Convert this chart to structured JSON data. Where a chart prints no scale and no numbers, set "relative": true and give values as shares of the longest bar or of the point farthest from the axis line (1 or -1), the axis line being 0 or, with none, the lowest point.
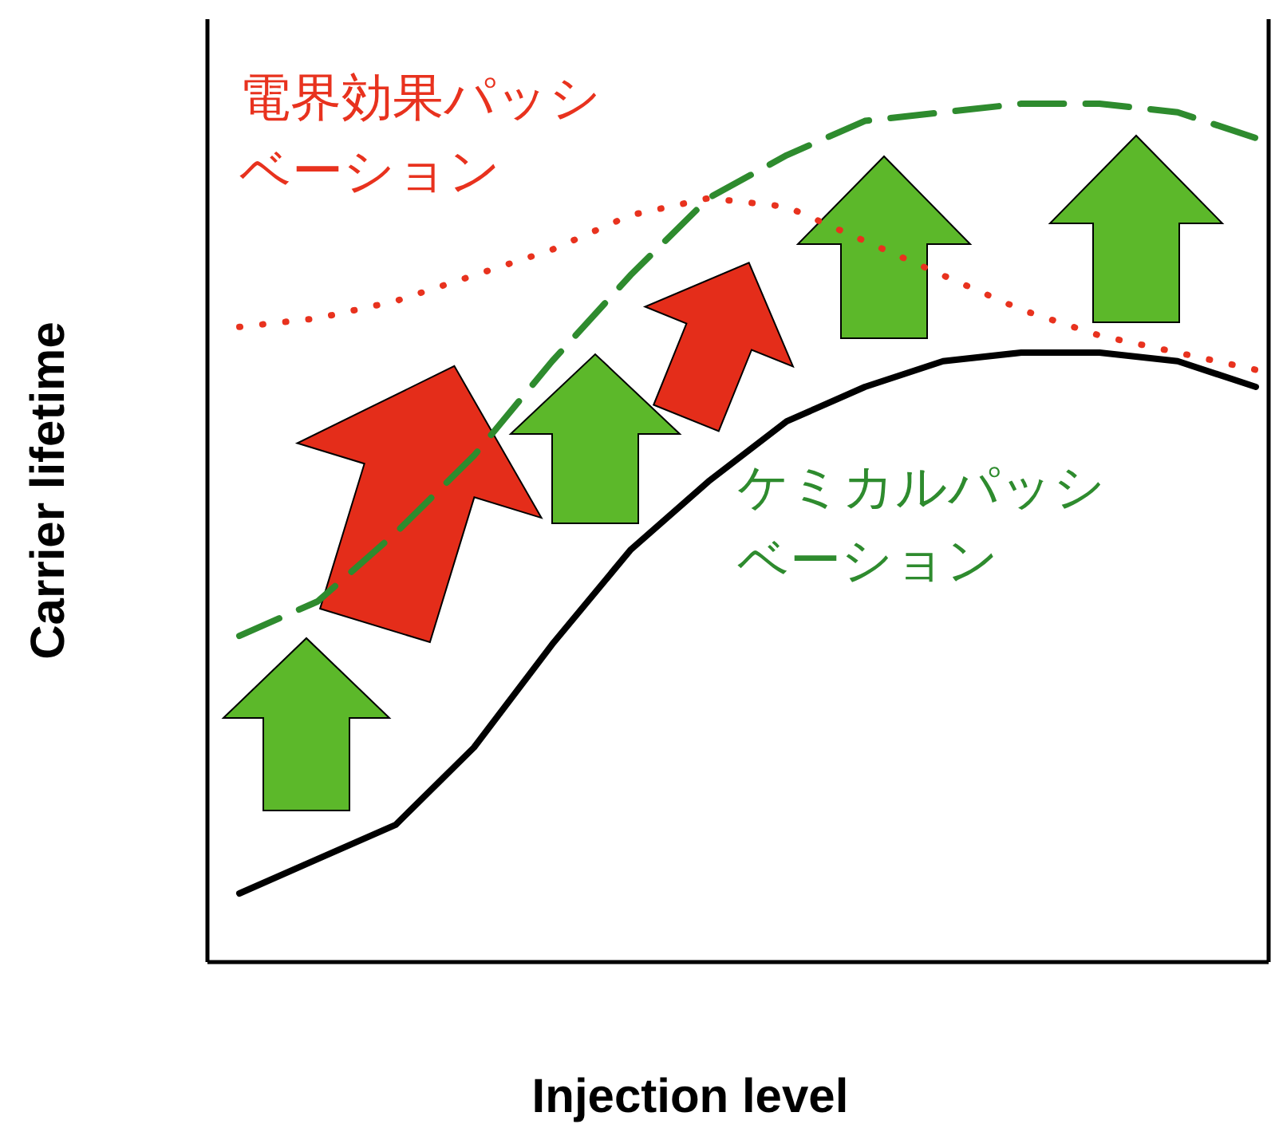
{
  "chart_data": {
    "type": "line",
    "relative": true,
    "xlabel": "Injection level",
    "ylabel": "Carrier lifetime",
    "categories": [
      null,
      null,
      null,
      null,
      null,
      null,
      null,
      null,
      null,
      null,
      null,
      null,
      null,
      null
    ],
    "series": [
      {
        "color": "#000000",
        "line_style": "solid",
        "values": [
          0.08,
          0.12,
          0.16,
          0.25,
          0.37,
          0.48,
          0.56,
          0.63,
          0.67,
          0.7,
          0.71,
          0.71,
          0.7,
          0.67
        ]
      },
      {
        "name": "ケミカルパッシベーション",
        "color": "#2e8b2e",
        "line_style": "dashed",
        "values": [
          0.38,
          0.42,
          0.5,
          0.59,
          0.7,
          0.8,
          0.89,
          0.94,
          0.98,
          0.99,
          1.0,
          1.0,
          0.99,
          0.96
        ]
      },
      {
        "name": "電界効果パッシベーション",
        "color": "#e8321e",
        "line_style": "dotted",
        "values": [
          0.74,
          0.75,
          0.77,
          0.8,
          0.83,
          0.87,
          0.89,
          0.88,
          0.84,
          0.8,
          0.76,
          0.73,
          0.71,
          0.69
        ]
      }
    ]
  }
}
